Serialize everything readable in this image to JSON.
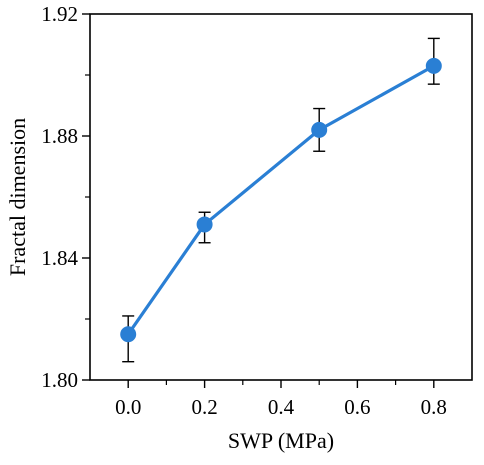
{
  "chart_data": {
    "type": "line",
    "title": "",
    "xlabel": "SWP (MPa)",
    "ylabel": "Fractal dimension",
    "xlim": [
      -0.1,
      0.9
    ],
    "ylim": [
      1.8,
      1.92
    ],
    "x_ticks": [
      0.0,
      0.2,
      0.4,
      0.6,
      0.8
    ],
    "x_tick_labels": [
      "0.0",
      "0.2",
      "0.4",
      "0.6",
      "0.8"
    ],
    "y_ticks": [
      1.8,
      1.84,
      1.88,
      1.92
    ],
    "y_tick_labels": [
      "1.80",
      "1.84",
      "1.88",
      "1.92"
    ],
    "grid": false,
    "legend": "none",
    "series": [
      {
        "color": "#2a7fd4",
        "x": [
          0.0,
          0.2,
          0.5,
          0.8
        ],
        "y": [
          1.815,
          1.851,
          1.882,
          1.903
        ],
        "error": [
          [
            0.009,
            0.006
          ],
          [
            0.006,
            0.004
          ],
          [
            0.007,
            0.007
          ],
          [
            0.006,
            0.009
          ]
        ]
      }
    ]
  }
}
